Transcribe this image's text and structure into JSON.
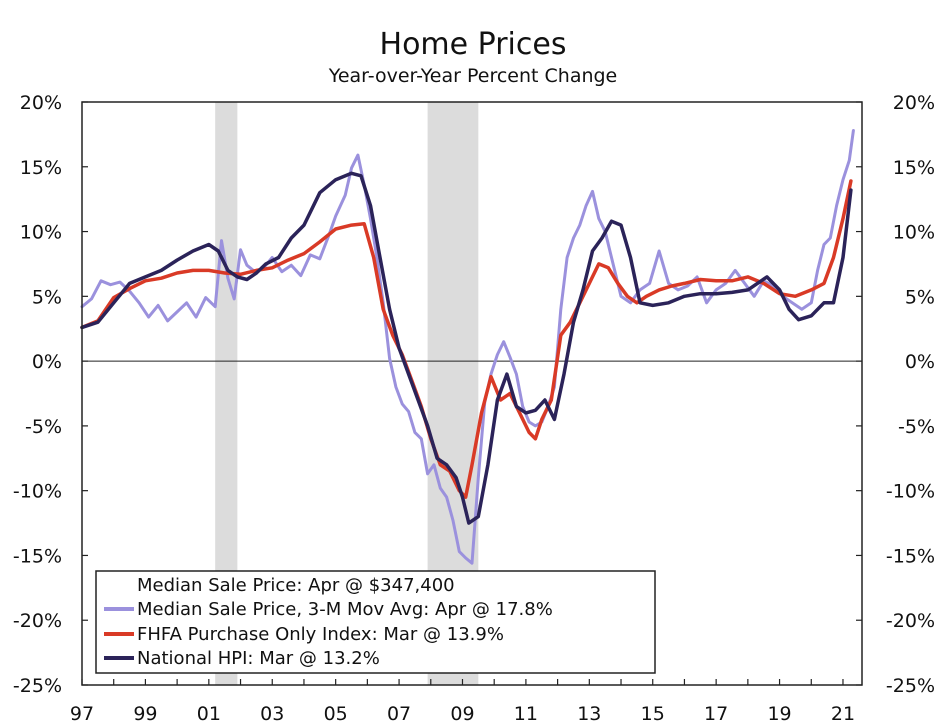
{
  "chart_data": {
    "type": "line",
    "title": "Home Prices",
    "subtitle": "Year-over-Year Percent Change",
    "xlabel": "",
    "ylabel": "",
    "xlim": [
      1997.0,
      2021.6
    ],
    "ylim": [
      -25,
      20
    ],
    "y_ticks": [
      20,
      15,
      10,
      5,
      0,
      -5,
      -10,
      -15,
      -20,
      -25
    ],
    "y_tick_labels": [
      "20%",
      "15%",
      "10%",
      "5%",
      "0%",
      "-5%",
      "-10%",
      "-15%",
      "-20%",
      "-25%"
    ],
    "x_ticks": [
      1997,
      1999,
      2001,
      2003,
      2005,
      2007,
      2009,
      2011,
      2013,
      2015,
      2017,
      2019,
      2021
    ],
    "x_tick_labels": [
      "97",
      "99",
      "01",
      "03",
      "05",
      "07",
      "09",
      "11",
      "13",
      "15",
      "17",
      "19",
      "21"
    ],
    "recessions": [
      [
        2001.2,
        2001.9
      ],
      [
        2007.9,
        2009.5
      ]
    ],
    "legend": {
      "position": "bottom-left",
      "entries": [
        {
          "label": "Median Sale Price: Apr @ $347,400",
          "color": "none"
        },
        {
          "label": "Median Sale Price, 3-M Mov Avg: Apr @ 17.8%",
          "color": "#9b91dd"
        },
        {
          "label": "FHFA Purchase Only Index: Mar @ 13.9%",
          "color": "#d93a26"
        },
        {
          "label": "National HPI: Mar @ 13.2%",
          "color": "#2b2359"
        }
      ]
    },
    "series": [
      {
        "name": "Median Sale Price, 3-M Mov Avg",
        "color": "#9b91dd",
        "x": [
          1997.0,
          1997.3,
          1997.6,
          1997.9,
          1998.2,
          1998.5,
          1998.8,
          1999.1,
          1999.4,
          1999.7,
          2000.0,
          2000.3,
          2000.6,
          2000.9,
          2001.2,
          2001.4,
          2001.6,
          2001.8,
          2002.0,
          2002.2,
          2002.5,
          2002.8,
          2003.0,
          2003.3,
          2003.6,
          2003.9,
          2004.2,
          2004.5,
          2004.8,
          2005.0,
          2005.3,
          2005.5,
          2005.7,
          2005.9,
          2006.1,
          2006.3,
          2006.5,
          2006.7,
          2006.9,
          2007.1,
          2007.3,
          2007.5,
          2007.7,
          2007.9,
          2008.1,
          2008.3,
          2008.5,
          2008.7,
          2008.9,
          2009.1,
          2009.3,
          2009.5,
          2009.7,
          2009.9,
          2010.1,
          2010.3,
          2010.5,
          2010.7,
          2010.9,
          2011.1,
          2011.3,
          2011.5,
          2011.7,
          2011.9,
          2012.1,
          2012.3,
          2012.5,
          2012.7,
          2012.9,
          2013.1,
          2013.3,
          2013.5,
          2013.7,
          2014.0,
          2014.3,
          2014.6,
          2014.9,
          2015.2,
          2015.5,
          2015.8,
          2016.1,
          2016.4,
          2016.7,
          2017.0,
          2017.3,
          2017.6,
          2017.9,
          2018.2,
          2018.5,
          2018.8,
          2019.1,
          2019.4,
          2019.7,
          2020.0,
          2020.2,
          2020.4,
          2020.6,
          2020.8,
          2021.0,
          2021.2,
          2021.33
        ],
        "y": [
          4.2,
          4.8,
          6.2,
          5.9,
          6.1,
          5.4,
          4.5,
          3.4,
          4.3,
          3.1,
          3.8,
          4.5,
          3.4,
          4.9,
          4.2,
          9.3,
          6.4,
          4.8,
          8.6,
          7.4,
          6.8,
          7.4,
          8.0,
          6.9,
          7.4,
          6.6,
          8.2,
          7.9,
          9.8,
          11.2,
          12.8,
          14.9,
          15.9,
          13.6,
          11.0,
          8.0,
          4.5,
          0.2,
          -2.0,
          -3.3,
          -3.9,
          -5.5,
          -6.0,
          -8.7,
          -8.0,
          -9.8,
          -10.5,
          -12.3,
          -14.7,
          -15.2,
          -15.6,
          -9.0,
          -3.2,
          -1.0,
          0.5,
          1.5,
          0.3,
          -1.0,
          -3.5,
          -4.7,
          -5.0,
          -4.7,
          -3.5,
          -2.0,
          4.0,
          8.0,
          9.5,
          10.5,
          12.0,
          13.1,
          11.0,
          10.0,
          8.0,
          5.0,
          4.5,
          5.5,
          6.0,
          8.5,
          6.0,
          5.5,
          5.8,
          6.5,
          4.5,
          5.5,
          6.0,
          7.0,
          6.0,
          5.0,
          6.2,
          5.8,
          5.0,
          4.5,
          4.0,
          4.5,
          7.0,
          9.0,
          9.5,
          12.0,
          14.0,
          15.5,
          17.8
        ]
      },
      {
        "name": "FHFA Purchase Only Index",
        "color": "#d93a26",
        "x": [
          1997.0,
          1997.5,
          1998.0,
          1998.5,
          1999.0,
          1999.5,
          2000.0,
          2000.5,
          2001.0,
          2001.5,
          2002.0,
          2002.5,
          2003.0,
          2003.5,
          2004.0,
          2004.5,
          2005.0,
          2005.5,
          2005.9,
          2006.2,
          2006.5,
          2006.8,
          2007.1,
          2007.4,
          2007.7,
          2008.0,
          2008.3,
          2008.6,
          2008.9,
          2009.1,
          2009.3,
          2009.6,
          2009.9,
          2010.2,
          2010.5,
          2010.8,
          2011.1,
          2011.3,
          2011.5,
          2011.8,
          2012.1,
          2012.4,
          2012.7,
          2013.0,
          2013.3,
          2013.6,
          2013.9,
          2014.2,
          2014.5,
          2014.8,
          2015.2,
          2015.6,
          2016.0,
          2016.5,
          2017.0,
          2017.5,
          2018.0,
          2018.5,
          2019.0,
          2019.5,
          2020.0,
          2020.4,
          2020.7,
          2021.0,
          2021.25
        ],
        "y": [
          2.6,
          3.1,
          4.9,
          5.6,
          6.2,
          6.4,
          6.8,
          7.0,
          7.0,
          6.8,
          6.7,
          7.0,
          7.2,
          7.8,
          8.3,
          9.2,
          10.2,
          10.5,
          10.6,
          8.0,
          4.0,
          2.0,
          0.5,
          -1.5,
          -3.5,
          -6.0,
          -8.0,
          -8.5,
          -10.0,
          -10.5,
          -8.0,
          -4.0,
          -1.2,
          -3.0,
          -2.5,
          -4.0,
          -5.5,
          -6.0,
          -4.5,
          -3.0,
          2.0,
          3.0,
          4.5,
          6.0,
          7.5,
          7.2,
          6.0,
          5.0,
          4.5,
          5.0,
          5.5,
          5.8,
          6.0,
          6.3,
          6.2,
          6.2,
          6.5,
          6.0,
          5.2,
          5.0,
          5.5,
          6.0,
          8.0,
          11.0,
          13.9
        ]
      },
      {
        "name": "National HPI",
        "color": "#2b2359",
        "x": [
          1997.0,
          1997.5,
          1998.0,
          1998.5,
          1999.0,
          1999.5,
          2000.0,
          2000.5,
          2001.0,
          2001.3,
          2001.6,
          2001.9,
          2002.2,
          2002.5,
          2002.8,
          2003.2,
          2003.6,
          2004.0,
          2004.5,
          2005.0,
          2005.5,
          2005.8,
          2006.1,
          2006.4,
          2006.7,
          2007.0,
          2007.3,
          2007.6,
          2007.9,
          2008.2,
          2008.5,
          2008.8,
          2009.0,
          2009.2,
          2009.5,
          2009.8,
          2010.1,
          2010.4,
          2010.7,
          2011.0,
          2011.3,
          2011.6,
          2011.9,
          2012.2,
          2012.5,
          2012.8,
          2013.1,
          2013.4,
          2013.7,
          2014.0,
          2014.3,
          2014.6,
          2015.0,
          2015.5,
          2016.0,
          2016.5,
          2017.0,
          2017.5,
          2018.0,
          2018.3,
          2018.6,
          2019.0,
          2019.3,
          2019.6,
          2020.0,
          2020.4,
          2020.7,
          2021.0,
          2021.25
        ],
        "y": [
          2.6,
          3.0,
          4.5,
          6.0,
          6.5,
          7.0,
          7.8,
          8.5,
          9.0,
          8.5,
          7.0,
          6.5,
          6.3,
          6.8,
          7.5,
          8.0,
          9.5,
          10.5,
          13.0,
          14.0,
          14.5,
          14.3,
          12.0,
          8.0,
          4.0,
          1.0,
          -1.0,
          -3.0,
          -5.0,
          -7.5,
          -8.0,
          -9.0,
          -10.5,
          -12.5,
          -12.0,
          -8.0,
          -3.0,
          -1.0,
          -3.5,
          -4.0,
          -3.8,
          -3.0,
          -4.5,
          -1.0,
          3.0,
          5.5,
          8.5,
          9.5,
          10.8,
          10.5,
          8.0,
          4.5,
          4.3,
          4.5,
          5.0,
          5.2,
          5.2,
          5.3,
          5.5,
          6.0,
          6.5,
          5.5,
          4.0,
          3.2,
          3.5,
          4.5,
          4.5,
          8.0,
          13.2
        ]
      }
    ]
  }
}
